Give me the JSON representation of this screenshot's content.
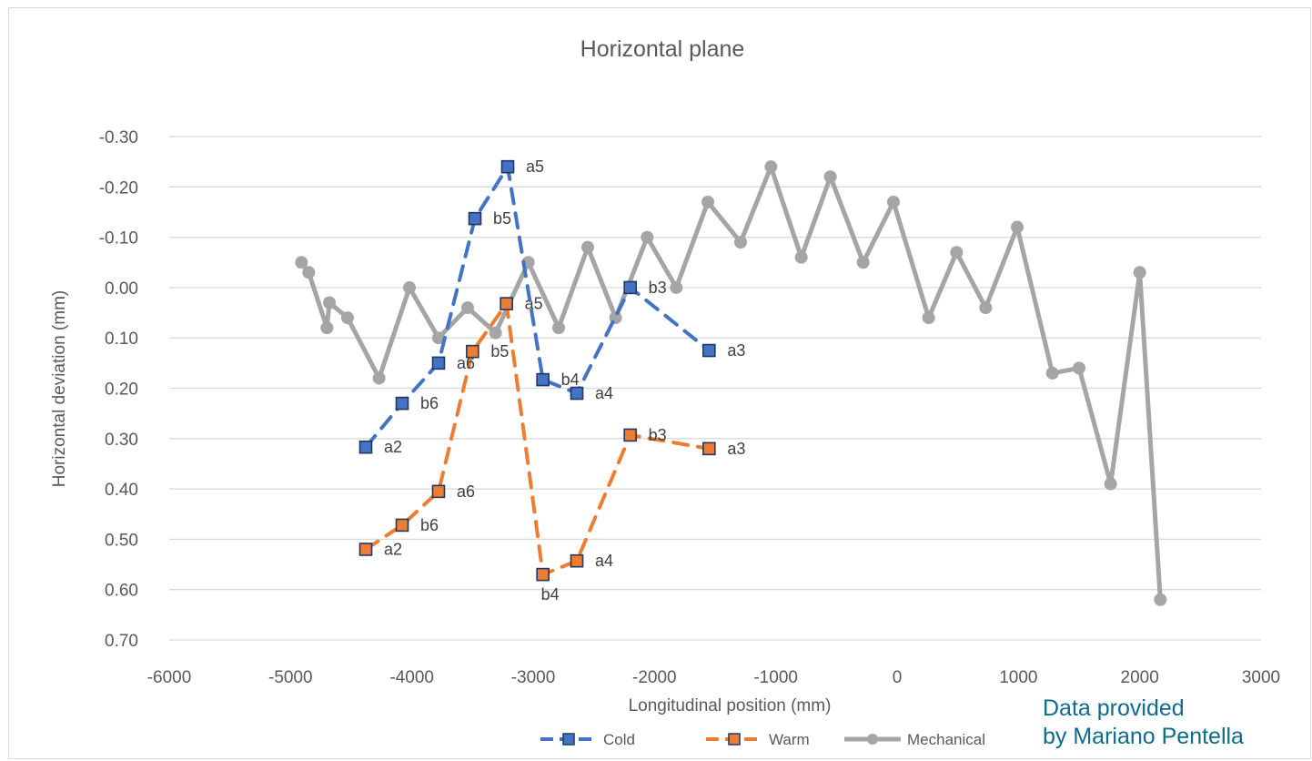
{
  "chart_data": {
    "type": "scatter",
    "title": "Horizontal plane",
    "xlabel": "Longitudinal position (mm)",
    "ylabel": "Horizontal deviation (mm)",
    "xlim": [
      -6000,
      3000
    ],
    "ylim": [
      -0.3,
      0.7
    ],
    "y_axis_reversed": true,
    "x_ticks": [
      "-6000",
      "-5000",
      "-4000",
      "-3000",
      "-2000",
      "-1000",
      "0",
      "1000",
      "2000",
      "3000"
    ],
    "y_ticks": [
      "-0.30",
      "-0.20",
      "-0.10",
      "0.00",
      "0.10",
      "0.20",
      "0.30",
      "0.40",
      "0.50",
      "0.60",
      "0.70"
    ],
    "grid": "horizontal",
    "legend_position": "bottom",
    "series": [
      {
        "name": "Cold",
        "color": "#4472c4",
        "line": "dashed",
        "marker": "square",
        "points": [
          {
            "x": -4380,
            "y": 0.317,
            "label": "a2"
          },
          {
            "x": -4080,
            "y": 0.23,
            "label": "b6"
          },
          {
            "x": -3780,
            "y": 0.15,
            "label": "a6"
          },
          {
            "x": -3480,
            "y": -0.137,
            "label": "b5"
          },
          {
            "x": -3210,
            "y": -0.24,
            "label": "a5"
          },
          {
            "x": -2920,
            "y": 0.183,
            "label": "b4"
          },
          {
            "x": -2640,
            "y": 0.21,
            "label": "a4"
          },
          {
            "x": -2200,
            "y": 0.0,
            "label": "b3"
          },
          {
            "x": -1550,
            "y": 0.125,
            "label": "a3"
          }
        ]
      },
      {
        "name": "Warm",
        "color": "#ed7d31",
        "line": "dashed",
        "marker": "square",
        "points": [
          {
            "x": -4380,
            "y": 0.52,
            "label": "a2"
          },
          {
            "x": -4080,
            "y": 0.472,
            "label": "b6"
          },
          {
            "x": -3780,
            "y": 0.405,
            "label": "a6"
          },
          {
            "x": -3500,
            "y": 0.127,
            "label": "b5"
          },
          {
            "x": -3220,
            "y": 0.032,
            "label": "a5"
          },
          {
            "x": -2920,
            "y": 0.57,
            "label": "b4"
          },
          {
            "x": -2640,
            "y": 0.543,
            "label": "a4"
          },
          {
            "x": -2200,
            "y": 0.293,
            "label": "b3"
          },
          {
            "x": -1550,
            "y": 0.32,
            "label": "a3"
          }
        ]
      },
      {
        "name": "Mechanical",
        "color": "#a5a5a5",
        "line": "solid",
        "marker": "circle",
        "points": [
          {
            "x": -4910,
            "y": -0.05
          },
          {
            "x": -4850,
            "y": -0.03
          },
          {
            "x": -4700,
            "y": 0.08
          },
          {
            "x": -4680,
            "y": 0.03
          },
          {
            "x": -4530,
            "y": 0.06
          },
          {
            "x": -4270,
            "y": 0.18
          },
          {
            "x": -4020,
            "y": 0.0
          },
          {
            "x": -3780,
            "y": 0.1
          },
          {
            "x": -3540,
            "y": 0.04
          },
          {
            "x": -3310,
            "y": 0.09
          },
          {
            "x": -3040,
            "y": -0.05
          },
          {
            "x": -2790,
            "y": 0.08
          },
          {
            "x": -2550,
            "y": -0.08
          },
          {
            "x": -2320,
            "y": 0.06
          },
          {
            "x": -2060,
            "y": -0.1
          },
          {
            "x": -1820,
            "y": 0.0
          },
          {
            "x": -1560,
            "y": -0.17
          },
          {
            "x": -1290,
            "y": -0.09
          },
          {
            "x": -1040,
            "y": -0.24
          },
          {
            "x": -790,
            "y": -0.06
          },
          {
            "x": -550,
            "y": -0.22
          },
          {
            "x": -280,
            "y": -0.05
          },
          {
            "x": -30,
            "y": -0.17
          },
          {
            "x": 260,
            "y": 0.06
          },
          {
            "x": 490,
            "y": -0.07
          },
          {
            "x": 730,
            "y": 0.04
          },
          {
            "x": 990,
            "y": -0.12
          },
          {
            "x": 1280,
            "y": 0.17
          },
          {
            "x": 1500,
            "y": 0.16
          },
          {
            "x": 1760,
            "y": 0.39
          },
          {
            "x": 2000,
            "y": -0.03
          },
          {
            "x": 2170,
            "y": 0.62
          }
        ]
      }
    ]
  },
  "credit": {
    "line1": "Data provided",
    "line2": "by Mariano Pentella"
  }
}
